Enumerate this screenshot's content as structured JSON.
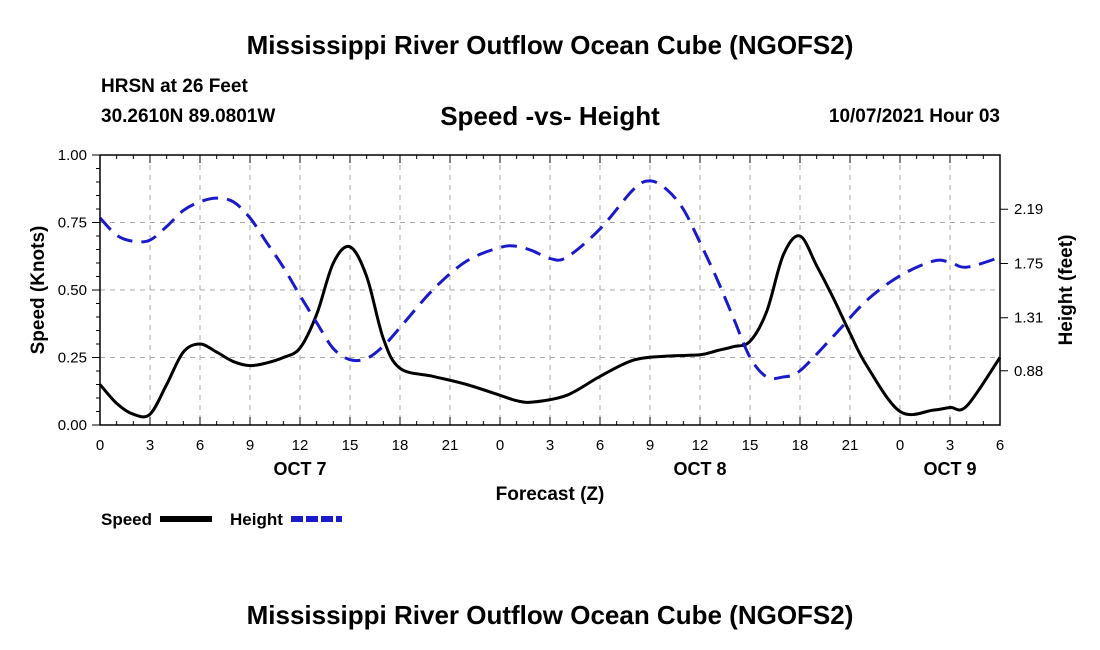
{
  "header": {
    "title_top": "Mississippi River Outflow Ocean Cube (NGOFS2)",
    "title_bottom": "Mississippi River Outflow Ocean Cube (NGOFS2)",
    "station": "HRSN at 26 Feet",
    "location": "30.2610N  89.0801W",
    "plot_title": "Speed -vs- Height",
    "datetime": "10/07/2021 Hour 03"
  },
  "colors": {
    "speed": "#000000",
    "height": "#1a1acc",
    "grid": "#aaaaaa"
  },
  "chart_data": {
    "type": "line",
    "title": "Speed -vs- Height",
    "xlabel": "Forecast (Z)",
    "ylabel": "Speed (Knots)",
    "y2label": "Height (feet)",
    "x_unit": "forecast hours (hour 0 = 00Z Oct 7)",
    "xlim": [
      0,
      54
    ],
    "ylim": [
      0,
      1
    ],
    "y2lim": [
      0.44,
      2.63
    ],
    "x_ticks": [
      0,
      3,
      6,
      9,
      12,
      15,
      18,
      21,
      24,
      27,
      30,
      33,
      36,
      39,
      42,
      45,
      48,
      51,
      54
    ],
    "x_tick_labels": [
      "0",
      "3",
      "6",
      "9",
      "12",
      "15",
      "18",
      "21",
      "0",
      "3",
      "6",
      "9",
      "12",
      "15",
      "18",
      "21",
      "0",
      "3",
      "6"
    ],
    "day_labels": [
      {
        "x": 12,
        "label": "OCT 7"
      },
      {
        "x": 36,
        "label": "OCT 8"
      },
      {
        "x": 51,
        "label": "OCT 9"
      }
    ],
    "y_ticks": [
      0,
      0.25,
      0.5,
      0.75,
      1.0
    ],
    "y_tick_labels": [
      "0.00",
      "0.25",
      "0.50",
      "0.75",
      "1.00"
    ],
    "y2_ticks": [
      0.88,
      1.31,
      1.75,
      2.19
    ],
    "y2_tick_labels": [
      "0.88",
      "1.31",
      "1.75",
      "2.19"
    ],
    "grid": true,
    "legend": [
      {
        "name": "Speed",
        "style": "solid"
      },
      {
        "name": "Height",
        "style": "dashed"
      }
    ],
    "legend_position": "bottom-left",
    "series": [
      {
        "name": "Speed",
        "axis": "left",
        "style": "solid",
        "x": [
          0,
          1,
          2,
          3,
          4,
          5,
          6,
          7,
          8,
          9,
          10,
          11,
          12,
          13,
          14,
          15,
          16,
          17,
          18,
          20,
          22,
          24,
          25,
          26,
          28,
          30,
          32,
          34,
          36,
          37,
          38,
          39,
          40,
          41,
          42,
          43,
          44,
          45,
          46,
          48,
          50,
          51,
          52,
          54
        ],
        "y": [
          0.15,
          0.08,
          0.04,
          0.04,
          0.15,
          0.27,
          0.3,
          0.27,
          0.235,
          0.22,
          0.23,
          0.25,
          0.285,
          0.41,
          0.6,
          0.66,
          0.55,
          0.32,
          0.21,
          0.18,
          0.15,
          0.11,
          0.09,
          0.085,
          0.11,
          0.18,
          0.24,
          0.255,
          0.26,
          0.275,
          0.29,
          0.31,
          0.42,
          0.63,
          0.7,
          0.59,
          0.47,
          0.34,
          0.22,
          0.05,
          0.055,
          0.065,
          0.07,
          0.25
        ]
      },
      {
        "name": "Height",
        "axis": "right",
        "style": "dashed",
        "x": [
          0,
          1,
          2,
          3,
          4,
          5,
          6,
          7,
          8,
          9,
          10,
          11,
          12,
          13,
          14,
          15,
          16,
          17,
          18,
          20,
          22,
          24,
          25,
          26,
          27,
          28,
          30,
          32,
          33,
          34,
          35,
          36,
          37,
          38,
          39,
          40,
          41,
          42,
          44,
          46,
          48,
          50,
          51,
          52,
          54
        ],
        "y": [
          2.12,
          1.98,
          1.93,
          1.94,
          2.05,
          2.18,
          2.25,
          2.28,
          2.25,
          2.12,
          1.92,
          1.72,
          1.49,
          1.27,
          1.06,
          0.97,
          0.98,
          1.08,
          1.23,
          1.54,
          1.77,
          1.88,
          1.89,
          1.85,
          1.79,
          1.8,
          2.03,
          2.35,
          2.42,
          2.35,
          2.19,
          1.92,
          1.63,
          1.31,
          0.99,
          0.83,
          0.83,
          0.88,
          1.16,
          1.45,
          1.65,
          1.77,
          1.76,
          1.72,
          1.8
        ]
      }
    ]
  }
}
